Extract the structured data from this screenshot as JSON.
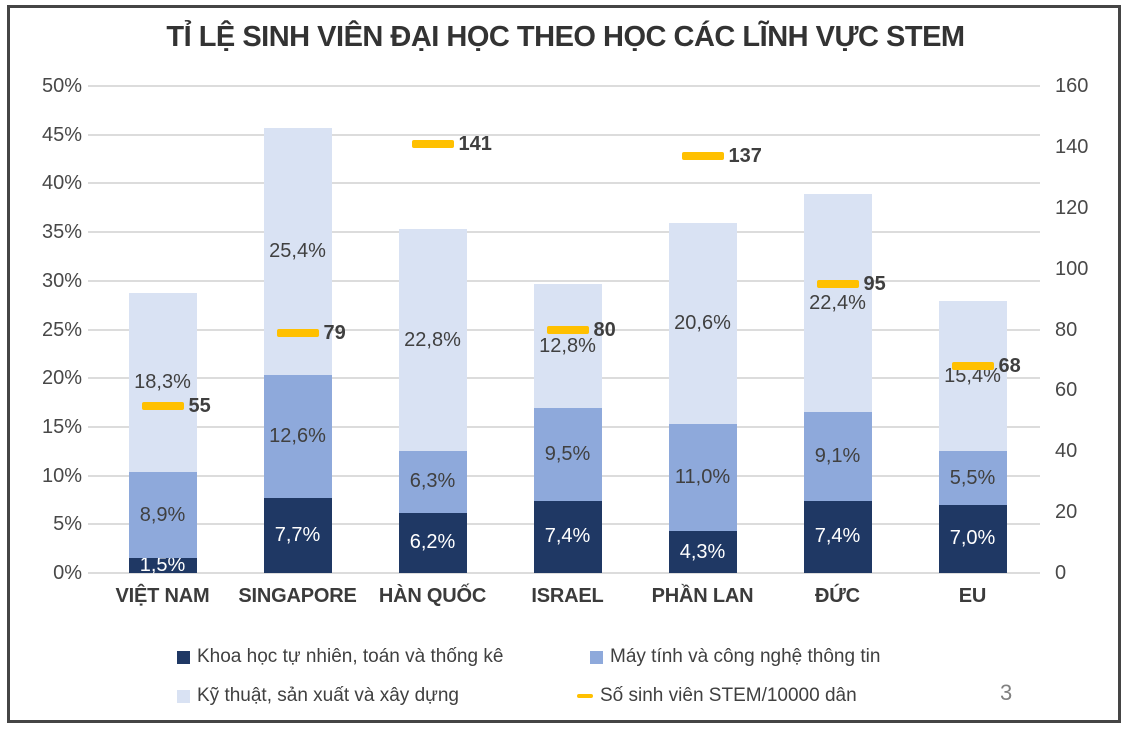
{
  "page_number": "3",
  "chart_data": {
    "type": "bar",
    "subtype": "stacked-column-with-secondary-axis-markers",
    "title": "TỈ LỆ SINH VIÊN ĐẠI HỌC THEO HỌC CÁC LĨNH VỰC STEM",
    "categories": [
      "VIỆT NAM",
      "SINGAPORE",
      "HÀN QUỐC",
      "ISRAEL",
      "PHẦN LAN",
      "ĐỨC",
      "EU"
    ],
    "series": [
      {
        "name": "Khoa học tự nhiên, toán và thống kê",
        "color": "#1F3864",
        "label_color": "#ffffff",
        "values": [
          1.5,
          7.7,
          6.2,
          7.4,
          4.3,
          7.4,
          7.0
        ],
        "labels": [
          "1,5%",
          "7,7%",
          "6,2%",
          "7,4%",
          "4,3%",
          "7,4%",
          "7,0%"
        ]
      },
      {
        "name": "Máy tính và công nghệ thông tin",
        "color": "#8EA9DB",
        "label_color": "#404040",
        "values": [
          8.9,
          12.6,
          6.3,
          9.5,
          11.0,
          9.1,
          5.5
        ],
        "labels": [
          "8,9%",
          "12,6%",
          "6,3%",
          "9,5%",
          "11,0%",
          "9,1%",
          "5,5%"
        ]
      },
      {
        "name": "Kỹ thuật, sản xuất và xây dựng",
        "color": "#D9E2F3",
        "label_color": "#404040",
        "values": [
          18.3,
          25.4,
          22.8,
          12.8,
          20.6,
          22.4,
          15.4
        ],
        "labels": [
          "18,3%",
          "25,4%",
          "22,8%",
          "12,8%",
          "20,6%",
          "22,4%",
          "15,4%"
        ]
      }
    ],
    "marker_series": {
      "name": "Số sinh viên STEM/10000 dân",
      "color": "#FFC000",
      "values": [
        55,
        79,
        141,
        80,
        137,
        95,
        68
      ],
      "labels": [
        "55",
        "79",
        "141",
        "80",
        "137",
        "95",
        "68"
      ]
    },
    "left_axis": {
      "min": 0,
      "max": 50,
      "ticks": [
        "0%",
        "5%",
        "10%",
        "15%",
        "20%",
        "25%",
        "30%",
        "35%",
        "40%",
        "45%",
        "50%"
      ]
    },
    "right_axis": {
      "min": 0,
      "max": 160,
      "ticks": [
        "0",
        "20",
        "40",
        "60",
        "80",
        "100",
        "120",
        "140",
        "160"
      ]
    },
    "grid": true,
    "legend_position": "bottom"
  }
}
